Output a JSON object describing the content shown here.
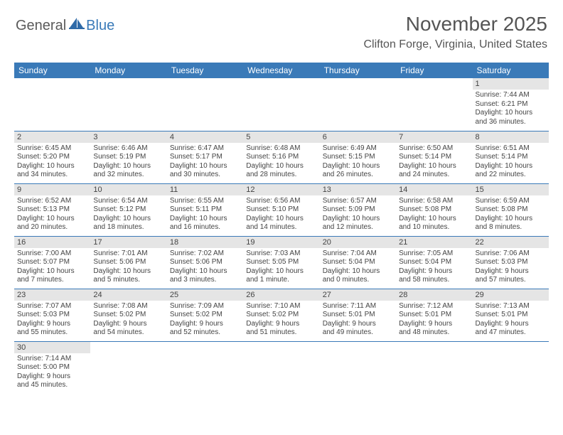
{
  "logo": {
    "part1": "General",
    "part2": "Blue"
  },
  "title": "November 2025",
  "location": "Clifton Forge, Virginia, United States",
  "colors": {
    "header_bg": "#3a7ab8",
    "header_fg": "#ffffff",
    "daynum_bg": "#e5e5e5",
    "text": "#444444",
    "logo_gray": "#5a5a5a",
    "logo_blue": "#3a7ab8"
  },
  "weekdays": [
    "Sunday",
    "Monday",
    "Tuesday",
    "Wednesday",
    "Thursday",
    "Friday",
    "Saturday"
  ],
  "weeks": [
    [
      null,
      null,
      null,
      null,
      null,
      null,
      {
        "n": "1",
        "sr": "Sunrise: 7:44 AM",
        "ss": "Sunset: 6:21 PM",
        "dl1": "Daylight: 10 hours",
        "dl2": "and 36 minutes."
      }
    ],
    [
      {
        "n": "2",
        "sr": "Sunrise: 6:45 AM",
        "ss": "Sunset: 5:20 PM",
        "dl1": "Daylight: 10 hours",
        "dl2": "and 34 minutes."
      },
      {
        "n": "3",
        "sr": "Sunrise: 6:46 AM",
        "ss": "Sunset: 5:19 PM",
        "dl1": "Daylight: 10 hours",
        "dl2": "and 32 minutes."
      },
      {
        "n": "4",
        "sr": "Sunrise: 6:47 AM",
        "ss": "Sunset: 5:17 PM",
        "dl1": "Daylight: 10 hours",
        "dl2": "and 30 minutes."
      },
      {
        "n": "5",
        "sr": "Sunrise: 6:48 AM",
        "ss": "Sunset: 5:16 PM",
        "dl1": "Daylight: 10 hours",
        "dl2": "and 28 minutes."
      },
      {
        "n": "6",
        "sr": "Sunrise: 6:49 AM",
        "ss": "Sunset: 5:15 PM",
        "dl1": "Daylight: 10 hours",
        "dl2": "and 26 minutes."
      },
      {
        "n": "7",
        "sr": "Sunrise: 6:50 AM",
        "ss": "Sunset: 5:14 PM",
        "dl1": "Daylight: 10 hours",
        "dl2": "and 24 minutes."
      },
      {
        "n": "8",
        "sr": "Sunrise: 6:51 AM",
        "ss": "Sunset: 5:14 PM",
        "dl1": "Daylight: 10 hours",
        "dl2": "and 22 minutes."
      }
    ],
    [
      {
        "n": "9",
        "sr": "Sunrise: 6:52 AM",
        "ss": "Sunset: 5:13 PM",
        "dl1": "Daylight: 10 hours",
        "dl2": "and 20 minutes."
      },
      {
        "n": "10",
        "sr": "Sunrise: 6:54 AM",
        "ss": "Sunset: 5:12 PM",
        "dl1": "Daylight: 10 hours",
        "dl2": "and 18 minutes."
      },
      {
        "n": "11",
        "sr": "Sunrise: 6:55 AM",
        "ss": "Sunset: 5:11 PM",
        "dl1": "Daylight: 10 hours",
        "dl2": "and 16 minutes."
      },
      {
        "n": "12",
        "sr": "Sunrise: 6:56 AM",
        "ss": "Sunset: 5:10 PM",
        "dl1": "Daylight: 10 hours",
        "dl2": "and 14 minutes."
      },
      {
        "n": "13",
        "sr": "Sunrise: 6:57 AM",
        "ss": "Sunset: 5:09 PM",
        "dl1": "Daylight: 10 hours",
        "dl2": "and 12 minutes."
      },
      {
        "n": "14",
        "sr": "Sunrise: 6:58 AM",
        "ss": "Sunset: 5:08 PM",
        "dl1": "Daylight: 10 hours",
        "dl2": "and 10 minutes."
      },
      {
        "n": "15",
        "sr": "Sunrise: 6:59 AM",
        "ss": "Sunset: 5:08 PM",
        "dl1": "Daylight: 10 hours",
        "dl2": "and 8 minutes."
      }
    ],
    [
      {
        "n": "16",
        "sr": "Sunrise: 7:00 AM",
        "ss": "Sunset: 5:07 PM",
        "dl1": "Daylight: 10 hours",
        "dl2": "and 7 minutes."
      },
      {
        "n": "17",
        "sr": "Sunrise: 7:01 AM",
        "ss": "Sunset: 5:06 PM",
        "dl1": "Daylight: 10 hours",
        "dl2": "and 5 minutes."
      },
      {
        "n": "18",
        "sr": "Sunrise: 7:02 AM",
        "ss": "Sunset: 5:06 PM",
        "dl1": "Daylight: 10 hours",
        "dl2": "and 3 minutes."
      },
      {
        "n": "19",
        "sr": "Sunrise: 7:03 AM",
        "ss": "Sunset: 5:05 PM",
        "dl1": "Daylight: 10 hours",
        "dl2": "and 1 minute."
      },
      {
        "n": "20",
        "sr": "Sunrise: 7:04 AM",
        "ss": "Sunset: 5:04 PM",
        "dl1": "Daylight: 10 hours",
        "dl2": "and 0 minutes."
      },
      {
        "n": "21",
        "sr": "Sunrise: 7:05 AM",
        "ss": "Sunset: 5:04 PM",
        "dl1": "Daylight: 9 hours",
        "dl2": "and 58 minutes."
      },
      {
        "n": "22",
        "sr": "Sunrise: 7:06 AM",
        "ss": "Sunset: 5:03 PM",
        "dl1": "Daylight: 9 hours",
        "dl2": "and 57 minutes."
      }
    ],
    [
      {
        "n": "23",
        "sr": "Sunrise: 7:07 AM",
        "ss": "Sunset: 5:03 PM",
        "dl1": "Daylight: 9 hours",
        "dl2": "and 55 minutes."
      },
      {
        "n": "24",
        "sr": "Sunrise: 7:08 AM",
        "ss": "Sunset: 5:02 PM",
        "dl1": "Daylight: 9 hours",
        "dl2": "and 54 minutes."
      },
      {
        "n": "25",
        "sr": "Sunrise: 7:09 AM",
        "ss": "Sunset: 5:02 PM",
        "dl1": "Daylight: 9 hours",
        "dl2": "and 52 minutes."
      },
      {
        "n": "26",
        "sr": "Sunrise: 7:10 AM",
        "ss": "Sunset: 5:02 PM",
        "dl1": "Daylight: 9 hours",
        "dl2": "and 51 minutes."
      },
      {
        "n": "27",
        "sr": "Sunrise: 7:11 AM",
        "ss": "Sunset: 5:01 PM",
        "dl1": "Daylight: 9 hours",
        "dl2": "and 49 minutes."
      },
      {
        "n": "28",
        "sr": "Sunrise: 7:12 AM",
        "ss": "Sunset: 5:01 PM",
        "dl1": "Daylight: 9 hours",
        "dl2": "and 48 minutes."
      },
      {
        "n": "29",
        "sr": "Sunrise: 7:13 AM",
        "ss": "Sunset: 5:01 PM",
        "dl1": "Daylight: 9 hours",
        "dl2": "and 47 minutes."
      }
    ],
    [
      {
        "n": "30",
        "sr": "Sunrise: 7:14 AM",
        "ss": "Sunset: 5:00 PM",
        "dl1": "Daylight: 9 hours",
        "dl2": "and 45 minutes."
      },
      null,
      null,
      null,
      null,
      null,
      null
    ]
  ]
}
